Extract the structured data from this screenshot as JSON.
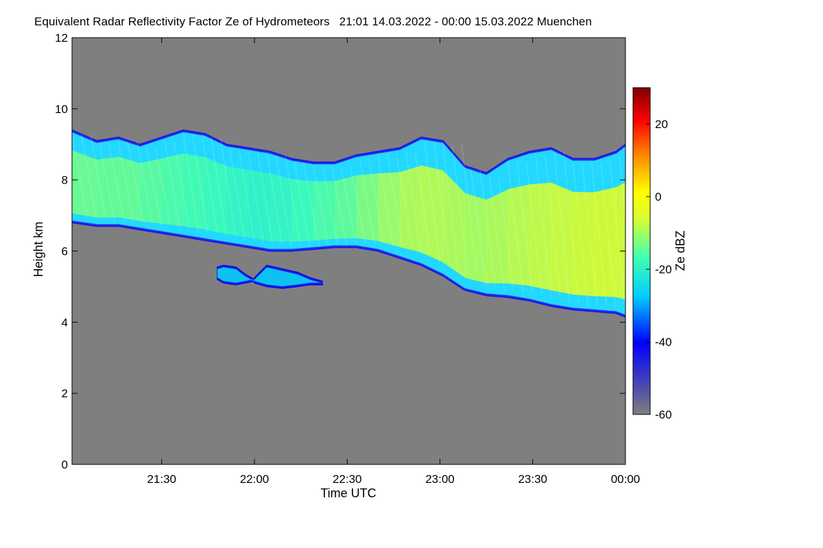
{
  "chart_data": {
    "type": "heatmap",
    "title": "Equivalent Radar Reflectivity Factor Ze of Hydrometeors",
    "time_range_text": "21:01 14.03.2022 - 00:00 15.03.2022",
    "location": "Muenchen",
    "xlabel": "Time UTC",
    "ylabel": "Height km",
    "colorbar_label": "Ze dBZ",
    "x_range": [
      "21:01",
      "00:00"
    ],
    "ylim": [
      0,
      12
    ],
    "x_ticks": [
      {
        "value": "21:30",
        "minutes": 29
      },
      {
        "value": "22:00",
        "minutes": 59
      },
      {
        "value": "22:30",
        "minutes": 89
      },
      {
        "value": "23:00",
        "minutes": 119
      },
      {
        "value": "23:30",
        "minutes": 149
      },
      {
        "value": "00:00",
        "minutes": 179
      }
    ],
    "y_ticks": [
      0,
      2,
      4,
      6,
      8,
      10,
      12
    ],
    "colorbar_range": [
      -60,
      30
    ],
    "colorbar_ticks": [
      20,
      0,
      -20,
      -40,
      -60
    ],
    "background_color": "#7f7f7f",
    "cloud_layers": [
      {
        "name": "upper cloud",
        "time_min": [
          0,
          8,
          15,
          22,
          29,
          36,
          43,
          50,
          57,
          64,
          71,
          78,
          85,
          92,
          99,
          106,
          113,
          120,
          127,
          134,
          141,
          148,
          155,
          162,
          169,
          176,
          179
        ],
        "top_km": [
          9.4,
          9.1,
          9.2,
          9.0,
          9.2,
          9.4,
          9.3,
          9.0,
          8.9,
          8.8,
          8.6,
          8.5,
          8.5,
          8.7,
          8.8,
          8.9,
          9.2,
          9.1,
          8.4,
          8.2,
          8.6,
          8.8,
          8.9,
          8.6,
          8.6,
          8.8,
          9.0
        ],
        "base_km": [
          6.8,
          6.7,
          6.7,
          6.6,
          6.5,
          6.4,
          6.3,
          6.2,
          6.1,
          6.0,
          6.0,
          6.05,
          6.1,
          6.1,
          6.0,
          5.8,
          5.6,
          5.3,
          4.9,
          4.75,
          4.7,
          4.6,
          4.45,
          4.35,
          4.3,
          4.25,
          4.15
        ],
        "core_dbz": [
          -12,
          -14,
          -13,
          -14,
          -15,
          -16,
          -17,
          -18,
          -19,
          -19,
          -18,
          -16,
          -15,
          -13,
          -10,
          -8,
          -7,
          -7,
          -8,
          -8,
          -7,
          -6,
          -5,
          -4,
          -3,
          -3,
          -4
        ]
      },
      {
        "name": "mid-level patch",
        "segments": [
          {
            "time_min": [
              47,
              49,
              53,
              56,
              59
            ],
            "top_km": [
              5.55,
              5.6,
              5.55,
              5.35,
              5.2
            ],
            "base_km": [
              5.2,
              5.1,
              5.05,
              5.1,
              5.15
            ]
          },
          {
            "time_min": [
              59,
              63,
              68,
              73,
              77,
              81
            ],
            "top_km": [
              5.25,
              5.6,
              5.5,
              5.4,
              5.25,
              5.15
            ],
            "base_km": [
              5.1,
              5.0,
              4.95,
              5.0,
              5.05,
              5.05
            ]
          }
        ],
        "core_dbz": -30
      }
    ]
  }
}
